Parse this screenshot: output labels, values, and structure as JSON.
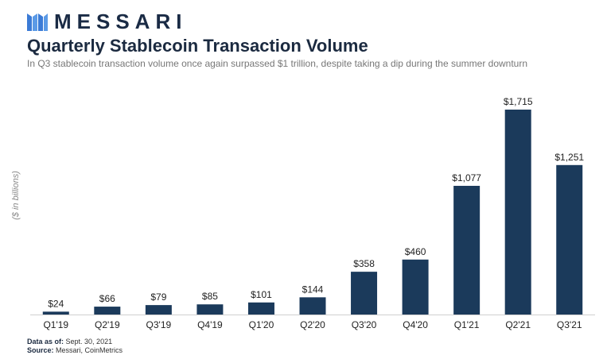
{
  "brand": {
    "name": "MESSARI",
    "accent": "#3b7bd6",
    "dark": "#1a2b45"
  },
  "chart_data": {
    "type": "bar",
    "title": "Quarterly Stablecoin Transaction Volume",
    "subtitle": "In Q3 stablecoin transaction volume once again surpassed $1 trillion, despite taking a dip during the summer downturn",
    "ylabel": "($ in billions)",
    "xlabel": "",
    "categories": [
      "Q1'19",
      "Q2'19",
      "Q3'19",
      "Q4'19",
      "Q1'20",
      "Q2'20",
      "Q3'20",
      "Q4'20",
      "Q1'21",
      "Q2'21",
      "Q3'21"
    ],
    "values": [
      24,
      66,
      79,
      85,
      101,
      144,
      358,
      460,
      1077,
      1715,
      1251
    ],
    "data_labels": [
      "$24",
      "$66",
      "$79",
      "$85",
      "$101",
      "$144",
      "$358",
      "$460",
      "$1,077",
      "$1,715",
      "$1,251"
    ],
    "ylim": [
      0,
      1715
    ],
    "bar_color": "#1b3a5b",
    "grid": false,
    "legend": "none"
  },
  "footer": {
    "data_as_of_label": "Data as of:",
    "data_as_of_value": "Sept. 30, 2021",
    "source_label": "Source:",
    "source_value": "Messari, CoinMetrics"
  }
}
